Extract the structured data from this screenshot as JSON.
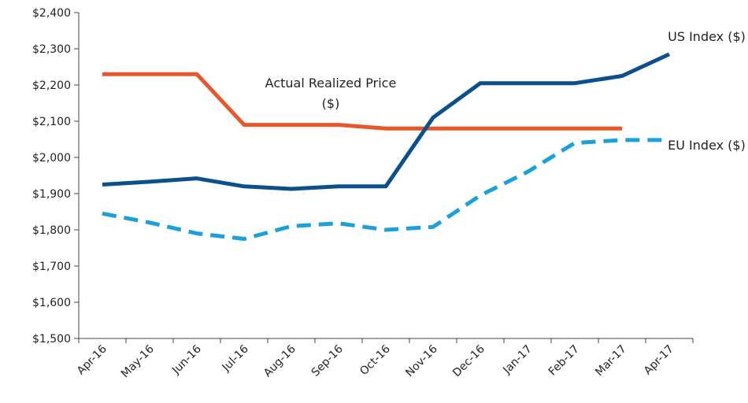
{
  "chart_data": {
    "type": "line",
    "categories": [
      "Apr-16",
      "May-16",
      "Jun-16",
      "Jul-16",
      "Aug-16",
      "Sep-16",
      "Oct-16",
      "Nov-16",
      "Dec-16",
      "Jan-17",
      "Feb-17",
      "Mar-17",
      "Apr-17"
    ],
    "series": [
      {
        "name": "Actual Realized Price ($)",
        "color": "#e8572a",
        "dashed": false,
        "values": [
          2230,
          2230,
          2230,
          2090,
          2090,
          2090,
          2080,
          2080,
          2080,
          2080,
          2080,
          2080,
          null
        ]
      },
      {
        "name": "US Index ($)",
        "color": "#0b4f8c",
        "dashed": false,
        "values": [
          1925,
          1933,
          1942,
          1920,
          1913,
          1920,
          1920,
          2110,
          2205,
          2205,
          2205,
          2225,
          2285
        ]
      },
      {
        "name": "EU Index ($)",
        "color": "#1ba0dc",
        "dashed": true,
        "values": [
          1845,
          1820,
          1790,
          1775,
          1810,
          1818,
          1800,
          1808,
          1895,
          1960,
          2040,
          2048,
          2048
        ]
      }
    ],
    "ylim": [
      1500,
      2400
    ],
    "yticks": [
      {
        "value": 1500,
        "label": "$1,500"
      },
      {
        "value": 1600,
        "label": "$1,600"
      },
      {
        "value": 1700,
        "label": "$1,700"
      },
      {
        "value": 1800,
        "label": "$1,800"
      },
      {
        "value": 1900,
        "label": "$1,900"
      },
      {
        "value": 2000,
        "label": "$2,000"
      },
      {
        "value": 2100,
        "label": "$2,100"
      },
      {
        "value": 2200,
        "label": "$2,200"
      },
      {
        "value": 2300,
        "label": "$2,300"
      },
      {
        "value": 2400,
        "label": "$2,400"
      }
    ],
    "grid": false
  }
}
